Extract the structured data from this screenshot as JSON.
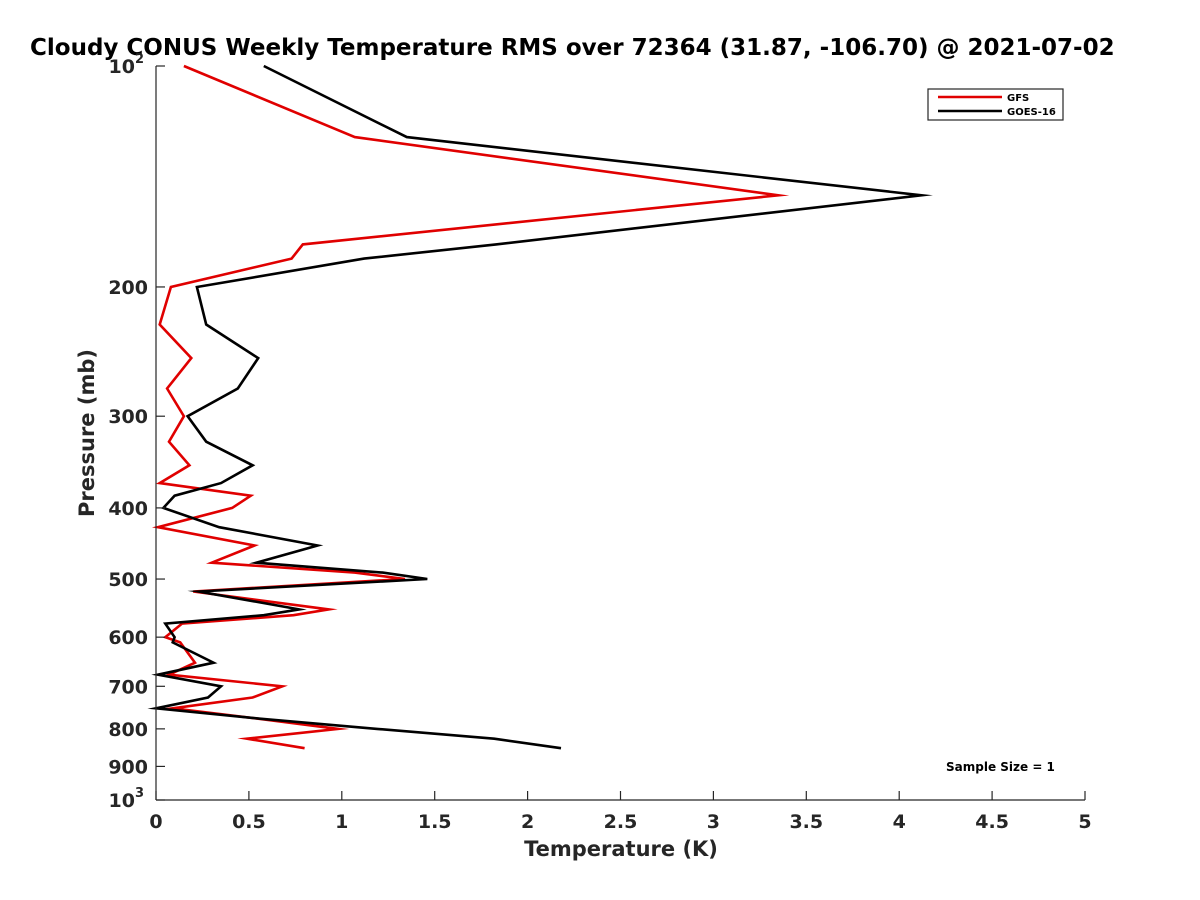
{
  "chart_data": {
    "type": "line",
    "title": "Cloudy CONUS Weekly Temperature RMS over 72364 (31.87, -106.70) @ 2021-07-02",
    "xlabel": "Temperature (K)",
    "ylabel": "Pressure (mb)",
    "xlim": [
      0,
      5
    ],
    "ylim": [
      100,
      1000
    ],
    "y_scale": "log",
    "y_reversed": true,
    "grid": false,
    "legend_position": "top-right",
    "x_ticks": [
      {
        "value": 0,
        "label": "0"
      },
      {
        "value": 0.5,
        "label": "0.5"
      },
      {
        "value": 1,
        "label": "1"
      },
      {
        "value": 1.5,
        "label": "1.5"
      },
      {
        "value": 2,
        "label": "2"
      },
      {
        "value": 2.5,
        "label": "2.5"
      },
      {
        "value": 3,
        "label": "3"
      },
      {
        "value": 3.5,
        "label": "3.5"
      },
      {
        "value": 4,
        "label": "4"
      },
      {
        "value": 4.5,
        "label": "4.5"
      },
      {
        "value": 5,
        "label": "5"
      }
    ],
    "y_ticks": [
      {
        "value": 100,
        "label": "10",
        "exponent": "2"
      },
      {
        "value": 200,
        "label": "200"
      },
      {
        "value": 300,
        "label": "300"
      },
      {
        "value": 400,
        "label": "400"
      },
      {
        "value": 500,
        "label": "500"
      },
      {
        "value": 600,
        "label": "600"
      },
      {
        "value": 700,
        "label": "700"
      },
      {
        "value": 800,
        "label": "800"
      },
      {
        "value": 900,
        "label": "900"
      },
      {
        "value": 1000,
        "label": "10",
        "exponent": "3"
      }
    ],
    "annotation": "Sample Size = 1",
    "series": [
      {
        "name": "GFS",
        "color": "#e00000",
        "points": [
          {
            "pressure": 100,
            "value": 0.15
          },
          {
            "pressure": 125,
            "value": 1.07
          },
          {
            "pressure": 150,
            "value": 3.35
          },
          {
            "pressure": 175,
            "value": 0.79
          },
          {
            "pressure": 183,
            "value": 0.73
          },
          {
            "pressure": 200,
            "value": 0.08
          },
          {
            "pressure": 225,
            "value": 0.02
          },
          {
            "pressure": 250,
            "value": 0.19
          },
          {
            "pressure": 275,
            "value": 0.06
          },
          {
            "pressure": 300,
            "value": 0.15
          },
          {
            "pressure": 325,
            "value": 0.07
          },
          {
            "pressure": 350,
            "value": 0.18
          },
          {
            "pressure": 370,
            "value": 0.02
          },
          {
            "pressure": 385,
            "value": 0.51
          },
          {
            "pressure": 400,
            "value": 0.41
          },
          {
            "pressure": 425,
            "value": 0.01
          },
          {
            "pressure": 450,
            "value": 0.53
          },
          {
            "pressure": 475,
            "value": 0.3
          },
          {
            "pressure": 490,
            "value": 1.07
          },
          {
            "pressure": 500,
            "value": 1.34
          },
          {
            "pressure": 520,
            "value": 0.2
          },
          {
            "pressure": 550,
            "value": 0.93
          },
          {
            "pressure": 560,
            "value": 0.74
          },
          {
            "pressure": 575,
            "value": 0.14
          },
          {
            "pressure": 600,
            "value": 0.05
          },
          {
            "pressure": 610,
            "value": 0.13
          },
          {
            "pressure": 650,
            "value": 0.21
          },
          {
            "pressure": 675,
            "value": 0.07
          },
          {
            "pressure": 700,
            "value": 0.68
          },
          {
            "pressure": 725,
            "value": 0.52
          },
          {
            "pressure": 750,
            "value": 0.09
          },
          {
            "pressure": 775,
            "value": 0.55
          },
          {
            "pressure": 800,
            "value": 0.98
          },
          {
            "pressure": 825,
            "value": 0.49
          },
          {
            "pressure": 850,
            "value": 0.8
          }
        ]
      },
      {
        "name": "GOES-16",
        "color": "#000000",
        "points": [
          {
            "pressure": 100,
            "value": 0.58
          },
          {
            "pressure": 125,
            "value": 1.35
          },
          {
            "pressure": 150,
            "value": 4.12
          },
          {
            "pressure": 175,
            "value": 1.83
          },
          {
            "pressure": 183,
            "value": 1.12
          },
          {
            "pressure": 200,
            "value": 0.22
          },
          {
            "pressure": 225,
            "value": 0.27
          },
          {
            "pressure": 250,
            "value": 0.55
          },
          {
            "pressure": 275,
            "value": 0.44
          },
          {
            "pressure": 300,
            "value": 0.17
          },
          {
            "pressure": 325,
            "value": 0.27
          },
          {
            "pressure": 350,
            "value": 0.52
          },
          {
            "pressure": 370,
            "value": 0.35
          },
          {
            "pressure": 385,
            "value": 0.1
          },
          {
            "pressure": 400,
            "value": 0.04
          },
          {
            "pressure": 425,
            "value": 0.34
          },
          {
            "pressure": 450,
            "value": 0.87
          },
          {
            "pressure": 475,
            "value": 0.54
          },
          {
            "pressure": 490,
            "value": 1.22
          },
          {
            "pressure": 500,
            "value": 1.46
          },
          {
            "pressure": 520,
            "value": 0.23
          },
          {
            "pressure": 550,
            "value": 0.77
          },
          {
            "pressure": 560,
            "value": 0.58
          },
          {
            "pressure": 575,
            "value": 0.05
          },
          {
            "pressure": 600,
            "value": 0.1
          },
          {
            "pressure": 610,
            "value": 0.09
          },
          {
            "pressure": 650,
            "value": 0.31
          },
          {
            "pressure": 675,
            "value": 0.01
          },
          {
            "pressure": 700,
            "value": 0.35
          },
          {
            "pressure": 725,
            "value": 0.28
          },
          {
            "pressure": 750,
            "value": 0.0
          },
          {
            "pressure": 775,
            "value": 0.56
          },
          {
            "pressure": 800,
            "value": 1.19
          },
          {
            "pressure": 825,
            "value": 1.82
          },
          {
            "pressure": 850,
            "value": 2.18
          }
        ]
      }
    ]
  }
}
